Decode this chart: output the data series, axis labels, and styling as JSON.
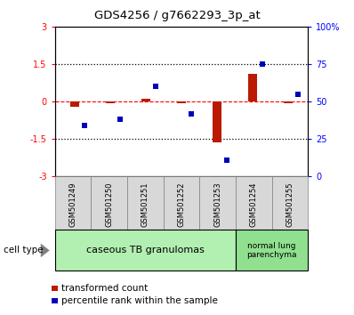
{
  "title": "GDS4256 / g7662293_3p_at",
  "samples": [
    "GSM501249",
    "GSM501250",
    "GSM501251",
    "GSM501252",
    "GSM501253",
    "GSM501254",
    "GSM501255"
  ],
  "transformed_count": [
    -0.2,
    -0.07,
    0.1,
    -0.05,
    -1.65,
    1.1,
    -0.07
  ],
  "percentile_rank": [
    34,
    38,
    60,
    42,
    11,
    75,
    55
  ],
  "ylim_left": [
    -3,
    3
  ],
  "ylim_right": [
    0,
    100
  ],
  "yticks_left": [
    -3,
    -1.5,
    0,
    1.5,
    3
  ],
  "yticks_right": [
    0,
    25,
    50,
    75,
    100
  ],
  "yticklabels_left": [
    "-3",
    "-1.5",
    "0",
    "1.5",
    "3"
  ],
  "yticklabels_right": [
    "0",
    "25",
    "50",
    "75",
    "100%"
  ],
  "group1_label": "caseous TB granulomas",
  "group2_label": "normal lung\nparenchyma",
  "group1_color": "#b2f0b2",
  "group2_color": "#90e090",
  "sample_box_color": "#d8d8d8",
  "bar_color_red": "#bb1a00",
  "bar_color_blue": "#0000bb",
  "legend_red_label": "transformed count",
  "legend_blue_label": "percentile rank within the sample",
  "cell_type_label": "cell type",
  "n_group1": 5,
  "n_group2": 2
}
